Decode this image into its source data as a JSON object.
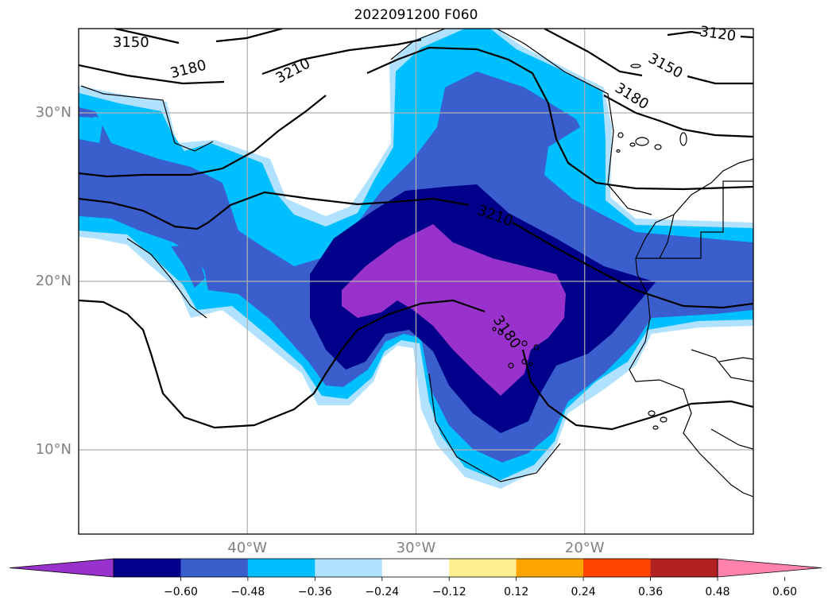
{
  "title": "2022091200 F060",
  "map": {
    "extent": {
      "lon_min": -50,
      "lon_max": -10,
      "lat_min": 5,
      "lat_max": 35
    },
    "lat_labels": [
      {
        "lat": 30,
        "text": "30°N"
      },
      {
        "lat": 20,
        "text": "20°N"
      },
      {
        "lat": 10,
        "text": "10°N"
      }
    ],
    "lon_labels": [
      {
        "lon": -40,
        "text": "40°W"
      },
      {
        "lon": -30,
        "text": "30°W"
      },
      {
        "lon": -20,
        "text": "20°W"
      }
    ],
    "contour_labels": [
      {
        "text": "3150",
        "lon": -46.9,
        "lat": 34.2,
        "rot": 0
      },
      {
        "text": "3180",
        "lon": -43.5,
        "lat": 32.6,
        "rot": -14
      },
      {
        "text": "3210",
        "lon": -37.3,
        "lat": 32.5,
        "rot": -28
      },
      {
        "text": "3120",
        "lon": -12.1,
        "lat": 34.7,
        "rot": 8
      },
      {
        "text": "3150",
        "lon": -15.2,
        "lat": 32.8,
        "rot": 28
      },
      {
        "text": "3180",
        "lon": -17.2,
        "lat": 31.0,
        "rot": 32
      },
      {
        "text": "3210",
        "lon": -25.3,
        "lat": 23.9,
        "rot": 20
      },
      {
        "text": "3180",
        "lon": -24.6,
        "lat": 17.0,
        "rot": 55
      }
    ]
  },
  "colorbar": {
    "levels": [
      "−0.60",
      "−0.48",
      "−0.36",
      "−0.24",
      "−0.12",
      "0.12",
      "0.24",
      "0.36",
      "0.48",
      "0.60"
    ],
    "colors": [
      "#9932cc",
      "#00008b",
      "#3a5fcd",
      "#00bfff",
      "#b0e2ff",
      "#ffffff",
      "#fff08f",
      "#ffa500",
      "#ff4500",
      "#b22222",
      "#ff82ab"
    ]
  }
}
